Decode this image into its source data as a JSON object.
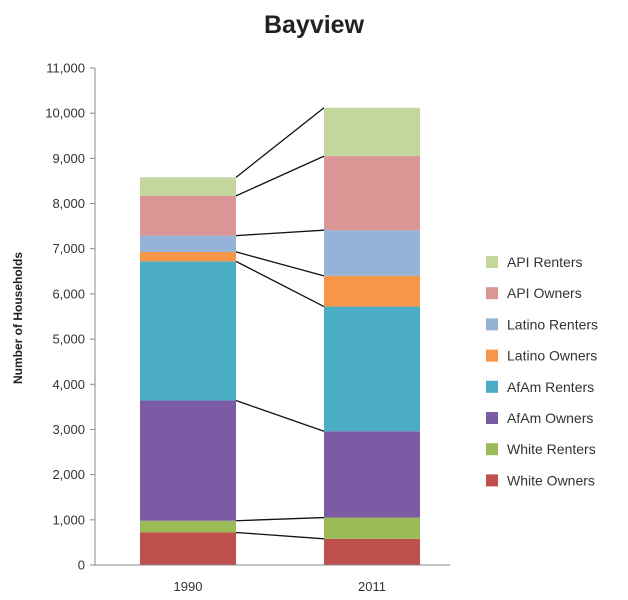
{
  "chart_data": {
    "type": "bar",
    "stacked": true,
    "title": "Bayview",
    "xlabel": "",
    "ylabel": "Number of Households",
    "categories": [
      "1990",
      "2011"
    ],
    "ylim": [
      0,
      11000
    ],
    "yticks": [
      0,
      1000,
      2000,
      3000,
      4000,
      5000,
      6000,
      7000,
      8000,
      9000,
      10000,
      11000
    ],
    "ytick_labels": [
      "0",
      "1,000",
      "2,000",
      "3,000",
      "4,000",
      "5,000",
      "6,000",
      "7,000",
      "8,000",
      "9,000",
      "10,000",
      "11,000"
    ],
    "grid": false,
    "legend_position": "right",
    "connector_lines": true,
    "series": [
      {
        "name": "White Owners",
        "color": "#c0504d",
        "values": [
          720,
          580
        ]
      },
      {
        "name": "White Renters",
        "color": "#9bbb59",
        "values": [
          260,
          470
        ]
      },
      {
        "name": "AfAm Owners",
        "color": "#7b5ba4",
        "values": [
          2660,
          1910
        ]
      },
      {
        "name": "AfAm Renters",
        "color": "#4bacc6",
        "values": [
          3080,
          2760
        ]
      },
      {
        "name": "Latino Owners",
        "color": "#f79646",
        "values": [
          210,
          680
        ]
      },
      {
        "name": "Latino Renters",
        "color": "#95b3d7",
        "values": [
          360,
          1010
        ]
      },
      {
        "name": "API Owners",
        "color": "#d99694",
        "values": [
          880,
          1640
        ]
      },
      {
        "name": "API Renters",
        "color": "#c3d69b",
        "values": [
          410,
          1070
        ]
      }
    ]
  }
}
